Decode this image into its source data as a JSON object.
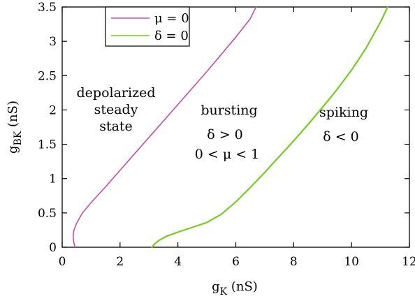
{
  "chart_data": {
    "type": "line",
    "xlabel": "g",
    "xlabel_sub": "K",
    "xlabel_unit": " (nS)",
    "ylabel": "g",
    "ylabel_sub": "BK",
    "ylabel_unit": " (nS)",
    "xlim": [
      0,
      12
    ],
    "ylim": [
      0,
      3.5
    ],
    "x_ticks": [
      0,
      2,
      4,
      6,
      8,
      10,
      12
    ],
    "y_ticks": [
      0,
      0.5,
      1,
      1.5,
      2,
      2.5,
      3,
      3.5
    ],
    "grid": false,
    "legend_position": "top-left",
    "series": [
      {
        "name": "μ = 0",
        "color": "#c2509e",
        "x": [
          0.45,
          0.4,
          0.38,
          0.4,
          0.5,
          0.7,
          1.0,
          1.5,
          2.0,
          2.5,
          3.0,
          3.5,
          4.0,
          4.5,
          5.0,
          5.5,
          6.0,
          6.5,
          6.7
        ],
        "y": [
          0.0,
          0.07,
          0.15,
          0.24,
          0.35,
          0.5,
          0.65,
          0.88,
          1.12,
          1.36,
          1.6,
          1.84,
          2.08,
          2.32,
          2.56,
          2.81,
          3.06,
          3.33,
          3.5
        ]
      },
      {
        "name": "δ = 0",
        "color": "#77cc22",
        "x": [
          3.1,
          3.2,
          3.35,
          3.6,
          4.0,
          4.5,
          5.0,
          5.5,
          6.0,
          6.5,
          7.0,
          7.5,
          8.0,
          8.5,
          9.0,
          9.5,
          10.0,
          10.5,
          11.0,
          11.25
        ],
        "y": [
          0.0,
          0.05,
          0.1,
          0.16,
          0.22,
          0.29,
          0.36,
          0.48,
          0.66,
          0.87,
          1.09,
          1.32,
          1.55,
          1.79,
          2.04,
          2.3,
          2.58,
          2.9,
          3.28,
          3.5
        ]
      }
    ],
    "annotations": [
      {
        "lines": [
          "depolarized",
          "steady",
          "state"
        ]
      },
      {
        "lines": [
          "bursting"
        ]
      },
      {
        "lines": [
          "δ > 0",
          "0 < μ < 1"
        ]
      },
      {
        "lines": [
          "spiking"
        ]
      },
      {
        "lines": [
          "δ < 0"
        ]
      }
    ]
  }
}
